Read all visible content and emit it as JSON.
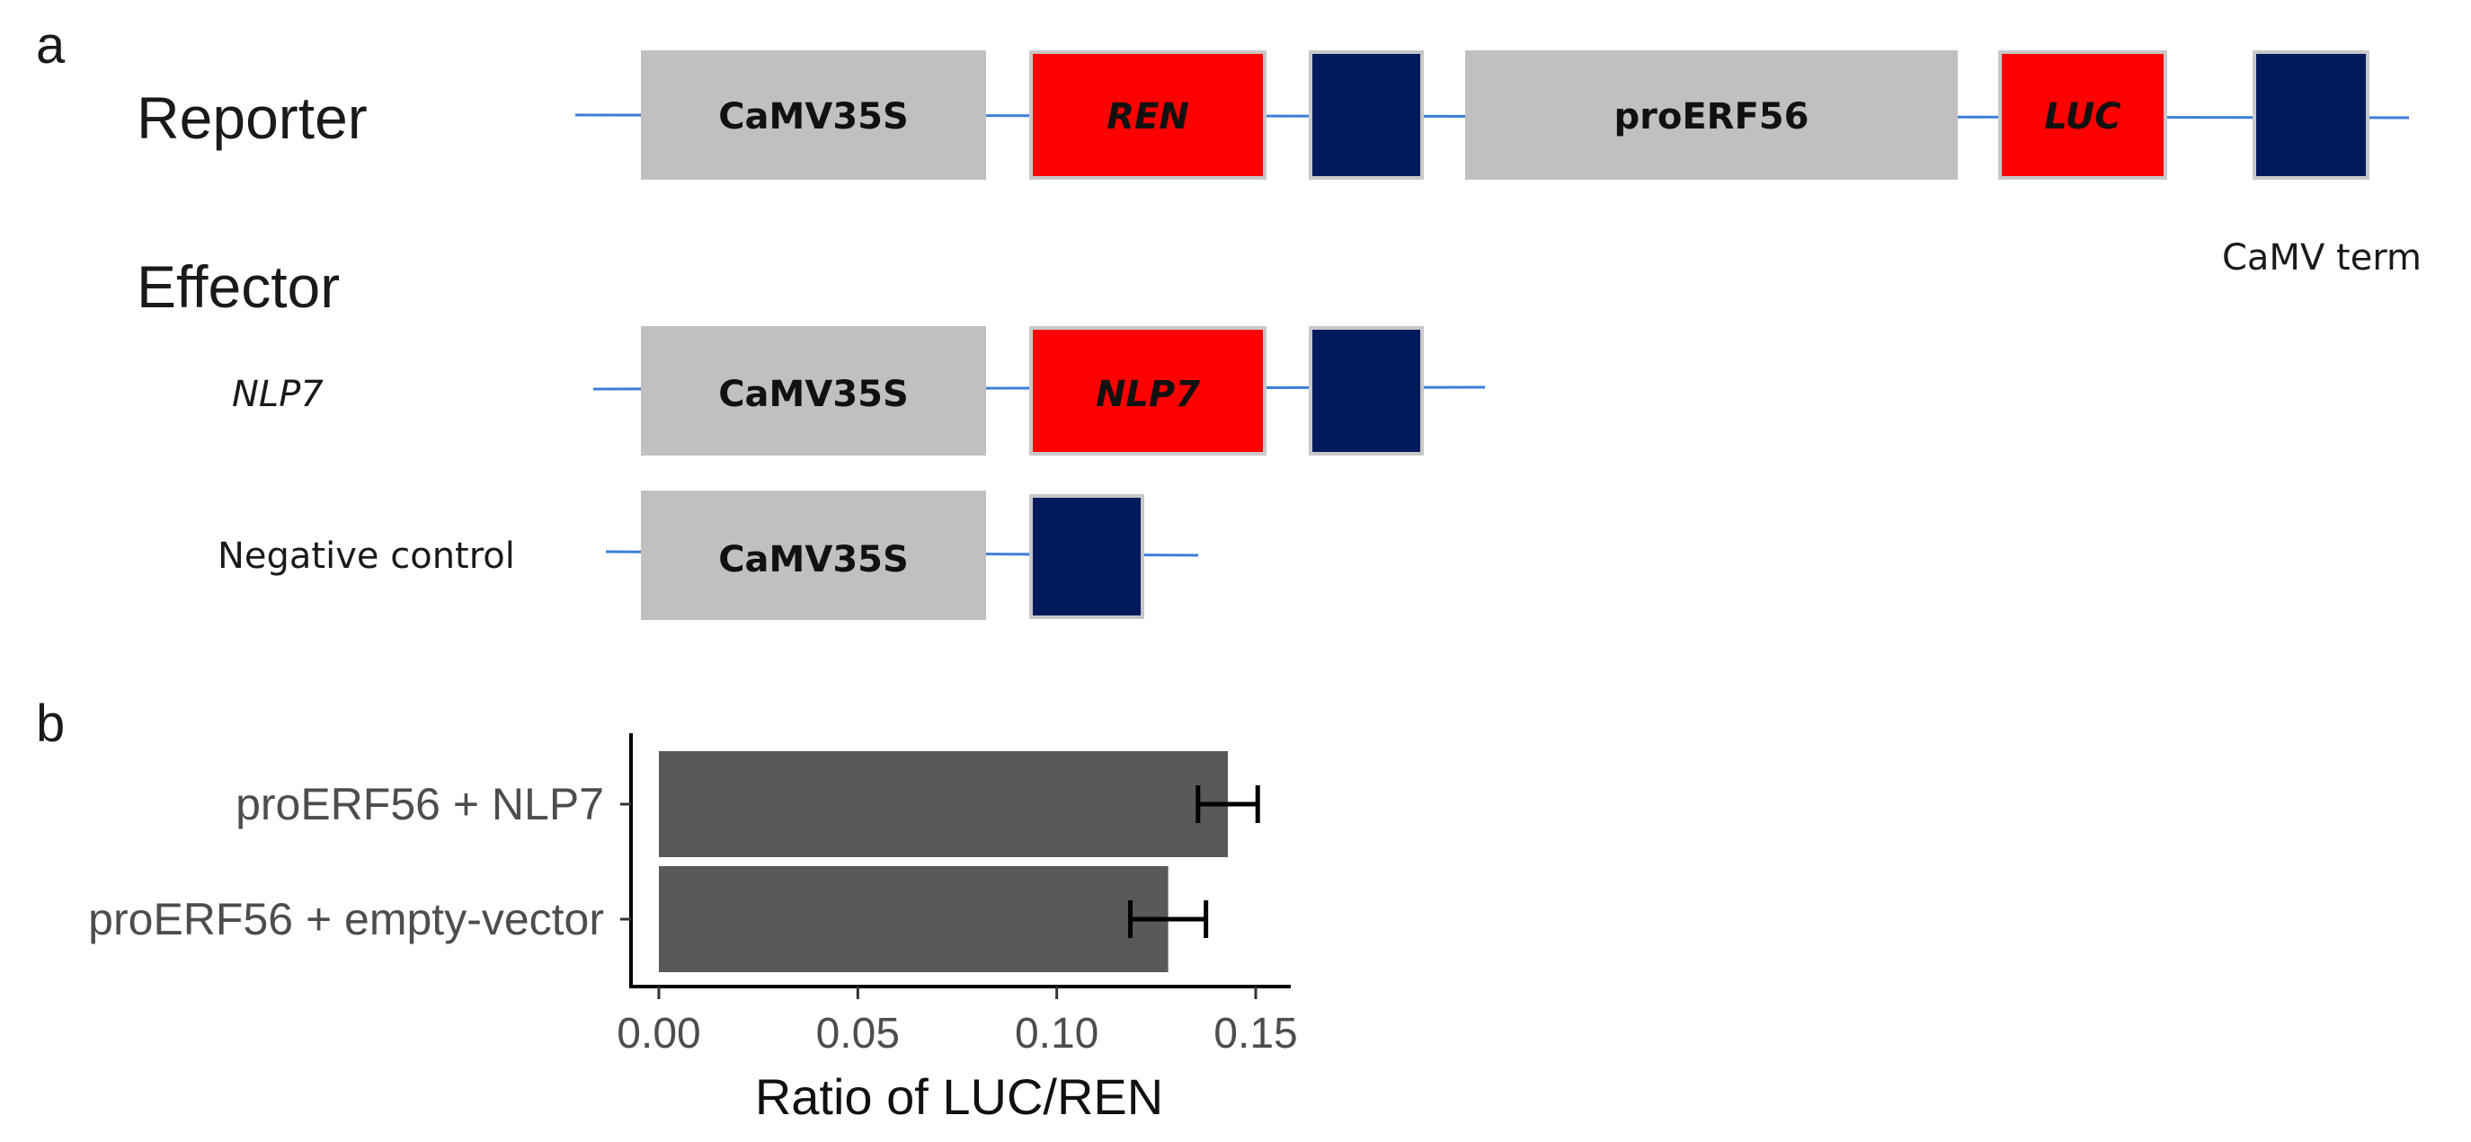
{
  "panel_a": {
    "letter": "a",
    "reporter": {
      "title": "Reporter",
      "elements": [
        {
          "type": "promoter",
          "label": "CaMV35S",
          "italic": false
        },
        {
          "type": "gene",
          "label": "REN",
          "italic": true
        },
        {
          "type": "terminator",
          "label": ""
        },
        {
          "type": "promoter",
          "label": "proERF56",
          "italic": false
        },
        {
          "type": "gene",
          "label": "LUC",
          "italic": true
        },
        {
          "type": "terminator",
          "label": ""
        }
      ],
      "terminator_caption": "CaMV term"
    },
    "effector": {
      "title": "Effector",
      "rows": [
        {
          "label": "NLP7",
          "label_italic": true,
          "elements": [
            {
              "type": "promoter",
              "label": "CaMV35S",
              "italic": false
            },
            {
              "type": "gene",
              "label": "NLP7",
              "italic": true
            },
            {
              "type": "terminator",
              "label": ""
            }
          ]
        },
        {
          "label": "Negative control",
          "label_italic": false,
          "elements": [
            {
              "type": "promoter",
              "label": "CaMV35S",
              "italic": false
            },
            {
              "type": "terminator",
              "label": ""
            }
          ]
        }
      ]
    },
    "colors": {
      "promoter": "#c0c0c0",
      "gene": "#ff0000",
      "terminator": "#001a5c",
      "dna_line": "#3c7fd6"
    }
  },
  "panel_b": {
    "letter": "b"
  },
  "chart_data": {
    "type": "bar",
    "orientation": "horizontal",
    "categories": [
      "proERF56 + NLP7",
      "proERF56 + empty-vector"
    ],
    "values": [
      0.143,
      0.128
    ],
    "error": [
      0.0075,
      0.0095
    ],
    "xlabel": "Ratio of LUC/REN",
    "ylabel": "",
    "xlim": [
      0,
      0.15
    ],
    "xticks": [
      "0.00",
      "0.05",
      "0.10",
      "0.15"
    ],
    "bar_color": "#595959",
    "grid": false
  }
}
